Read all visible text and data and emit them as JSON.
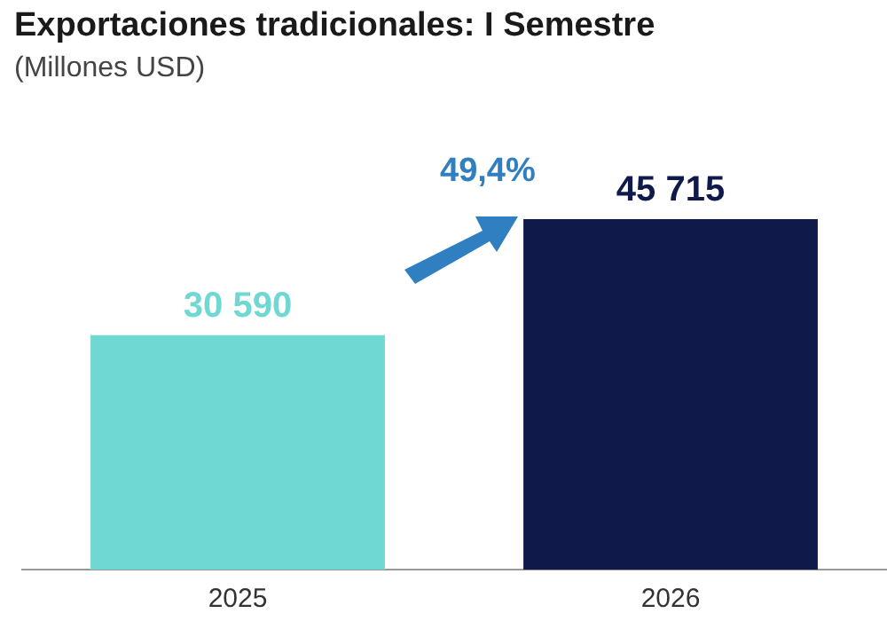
{
  "chart_data": {
    "type": "bar",
    "title": "Exportaciones tradicionales: I Semestre",
    "subtitle": "(Millones USD)",
    "categories": [
      "2025",
      "2026"
    ],
    "values": [
      30590,
      45715
    ],
    "colors": [
      "#6fd8d3",
      "#101a4a"
    ],
    "value_labels": [
      "30 590",
      "45 715"
    ],
    "annotations": [
      "49,4%"
    ],
    "legend": false
  }
}
